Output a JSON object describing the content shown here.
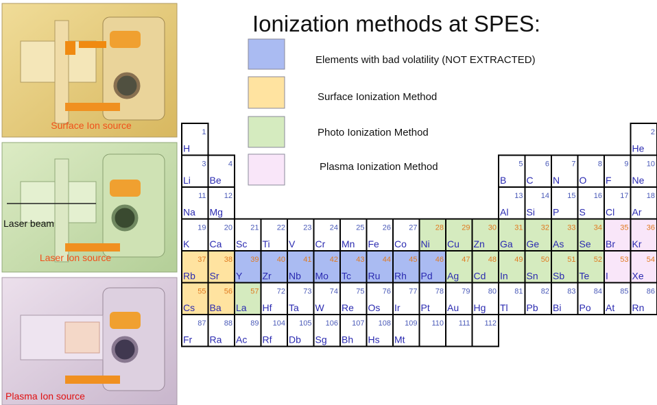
{
  "title": "Ionization methods at SPES:",
  "panels": [
    {
      "caption": "Surface  Ion source"
    },
    {
      "annotation": "Laser beam",
      "caption": "Laser Ion source"
    },
    {
      "caption": "Plasma Ion source"
    }
  ],
  "legend": [
    {
      "label": "Elements with bad volatility (NOT EXTRACTED)",
      "color": "#aabbf2"
    },
    {
      "label": "Surface Ionization Method",
      "color": "#ffe3a0"
    },
    {
      "label": "Photo Ionization Method",
      "color": "#d5ebbf"
    },
    {
      "label": "Plasma Ionization Method",
      "color": "#f9e6f9"
    }
  ],
  "elements": [
    {
      "z": 1,
      "symbol": "H"
    },
    {
      "z": 2,
      "symbol": "He"
    },
    {
      "z": 3,
      "symbol": "Li"
    },
    {
      "z": 4,
      "symbol": "Be"
    },
    {
      "z": 5,
      "symbol": "B"
    },
    {
      "z": 6,
      "symbol": "C"
    },
    {
      "z": 7,
      "symbol": "N"
    },
    {
      "z": 8,
      "symbol": "O"
    },
    {
      "z": 9,
      "symbol": "F"
    },
    {
      "z": 10,
      "symbol": "Ne"
    },
    {
      "z": 11,
      "symbol": "Na"
    },
    {
      "z": 12,
      "symbol": "Mg"
    },
    {
      "z": 13,
      "symbol": "Al"
    },
    {
      "z": 14,
      "symbol": "Si"
    },
    {
      "z": 15,
      "symbol": "P"
    },
    {
      "z": 16,
      "symbol": "S"
    },
    {
      "z": 17,
      "symbol": "Cl"
    },
    {
      "z": 18,
      "symbol": "Ar"
    },
    {
      "z": 19,
      "symbol": "K"
    },
    {
      "z": 20,
      "symbol": "Ca"
    },
    {
      "z": 21,
      "symbol": "Sc"
    },
    {
      "z": 22,
      "symbol": "Ti"
    },
    {
      "z": 23,
      "symbol": "V"
    },
    {
      "z": 24,
      "symbol": "Cr"
    },
    {
      "z": 25,
      "symbol": "Mn"
    },
    {
      "z": 26,
      "symbol": "Fe"
    },
    {
      "z": 27,
      "symbol": "Co"
    },
    {
      "z": 28,
      "symbol": "Ni",
      "fill": "#d5ebbf"
    },
    {
      "z": 29,
      "symbol": "Cu",
      "fill": "#d5ebbf"
    },
    {
      "z": 30,
      "symbol": "Zn",
      "fill": "#d5ebbf"
    },
    {
      "z": 31,
      "symbol": "Ga",
      "fill": "#d5ebbf"
    },
    {
      "z": 32,
      "symbol": "Ge",
      "fill": "#d5ebbf"
    },
    {
      "z": 33,
      "symbol": "As",
      "fill": "#d5ebbf"
    },
    {
      "z": 34,
      "symbol": "Se",
      "fill": "#d5ebbf"
    },
    {
      "z": 35,
      "symbol": "Br",
      "fill": "#f9e6f9"
    },
    {
      "z": 36,
      "symbol": "Kr",
      "fill": "#f9e6f9"
    },
    {
      "z": 37,
      "symbol": "Rb",
      "fill": "#ffe3a0"
    },
    {
      "z": 38,
      "symbol": "Sr",
      "fill": "#ffe3a0"
    },
    {
      "z": 39,
      "symbol": "Y",
      "fill": "#aabbf2"
    },
    {
      "z": 40,
      "symbol": "Zr",
      "fill": "#aabbf2"
    },
    {
      "z": 41,
      "symbol": "Nb",
      "fill": "#aabbf2"
    },
    {
      "z": 42,
      "symbol": "Mo",
      "fill": "#aabbf2"
    },
    {
      "z": 43,
      "symbol": "Tc",
      "fill": "#aabbf2"
    },
    {
      "z": 44,
      "symbol": "Ru",
      "fill": "#aabbf2"
    },
    {
      "z": 45,
      "symbol": "Rh",
      "fill": "#aabbf2"
    },
    {
      "z": 46,
      "symbol": "Pd",
      "fill": "#aabbf2"
    },
    {
      "z": 47,
      "symbol": "Ag",
      "fill": "#d5ebbf"
    },
    {
      "z": 48,
      "symbol": "Cd",
      "fill": "#d5ebbf"
    },
    {
      "z": 49,
      "symbol": "In",
      "fill": "#d5ebbf"
    },
    {
      "z": 50,
      "symbol": "Sn",
      "fill": "#d5ebbf"
    },
    {
      "z": 51,
      "symbol": "Sb",
      "fill": "#d5ebbf"
    },
    {
      "z": 52,
      "symbol": "Te",
      "fill": "#d5ebbf"
    },
    {
      "z": 53,
      "symbol": "I",
      "fill": "#f9e6f9"
    },
    {
      "z": 54,
      "symbol": "Xe",
      "fill": "#f9e6f9"
    },
    {
      "z": 55,
      "symbol": "Cs",
      "fill": "#ffe3a0"
    },
    {
      "z": 56,
      "symbol": "Ba",
      "fill": "#ffe3a0"
    },
    {
      "z": 57,
      "symbol": "La",
      "fill": "#d5ebbf"
    },
    {
      "z": 72,
      "symbol": "Hf"
    },
    {
      "z": 73,
      "symbol": "Ta"
    },
    {
      "z": 74,
      "symbol": "W"
    },
    {
      "z": 75,
      "symbol": "Re"
    },
    {
      "z": 76,
      "symbol": "Os"
    },
    {
      "z": 77,
      "symbol": "Ir"
    },
    {
      "z": 78,
      "symbol": "Pt"
    },
    {
      "z": 79,
      "symbol": "Au"
    },
    {
      "z": 80,
      "symbol": "Hg"
    },
    {
      "z": 81,
      "symbol": "Tl"
    },
    {
      "z": 82,
      "symbol": "Pb"
    },
    {
      "z": 83,
      "symbol": "Bi"
    },
    {
      "z": 84,
      "symbol": "Po"
    },
    {
      "z": 85,
      "symbol": "At"
    },
    {
      "z": 86,
      "symbol": "Rn"
    },
    {
      "z": 87,
      "symbol": "Fr"
    },
    {
      "z": 88,
      "symbol": "Ra"
    },
    {
      "z": 89,
      "symbol": "Ac"
    },
    {
      "z": 104,
      "symbol": "Rf"
    },
    {
      "z": 105,
      "symbol": "Db"
    },
    {
      "z": 106,
      "symbol": "Sg"
    },
    {
      "z": 107,
      "symbol": "Bh"
    },
    {
      "z": 108,
      "symbol": "Hs"
    },
    {
      "z": 109,
      "symbol": "Mt"
    },
    {
      "z": 110,
      "symbol": ""
    },
    {
      "z": 111,
      "symbol": ""
    },
    {
      "z": 112,
      "symbol": ""
    }
  ]
}
